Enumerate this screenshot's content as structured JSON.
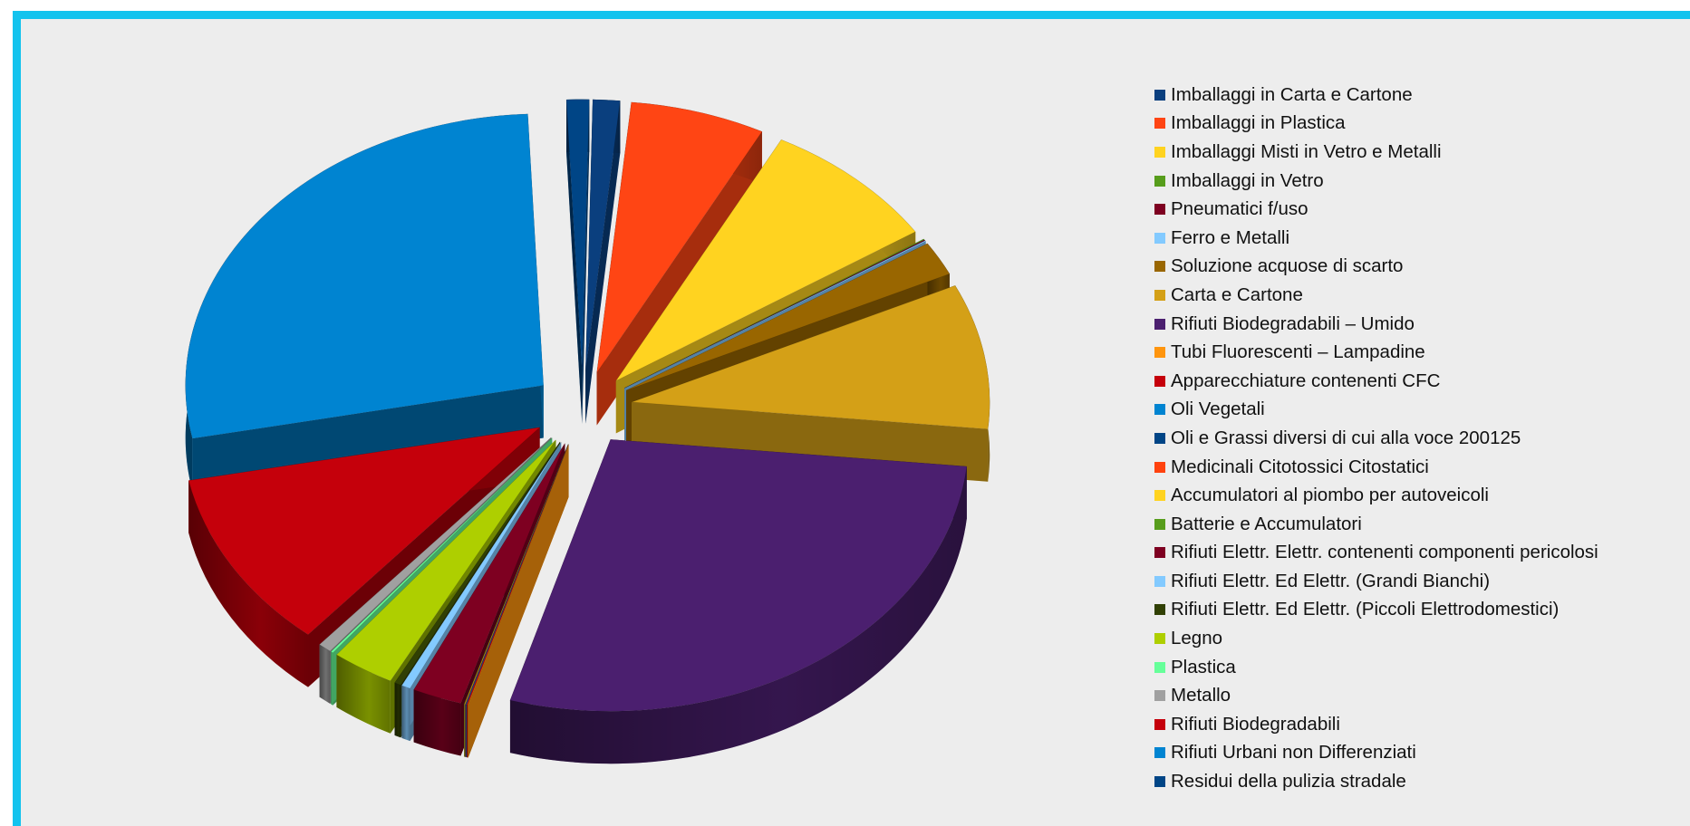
{
  "chart_data": {
    "type": "pie",
    "title": "",
    "legend_position": "right",
    "series": [
      {
        "name": "Imballaggi in Carta e Cartone",
        "value": 1.2,
        "color": "#0a3f7e"
      },
      {
        "name": "Imballaggi in Plastica",
        "value": 6.0,
        "color": "#ff4514"
      },
      {
        "name": "Imballaggi Misti in Vetro e Metalli",
        "value": 8.0,
        "color": "#ffd320"
      },
      {
        "name": "Imballaggi in Vetro",
        "value": 0.05,
        "color": "#579d1c"
      },
      {
        "name": "Pneumatici f/uso",
        "value": 0.05,
        "color": "#7e0021"
      },
      {
        "name": "Ferro e Metalli",
        "value": 0.05,
        "color": "#83caff"
      },
      {
        "name": "Soluzione acquose di scarto",
        "value": 2.0,
        "color": "#996600"
      },
      {
        "name": "Carta e Cartone",
        "value": 8.5,
        "color": "#d4a017"
      },
      {
        "name": "Rifiuti Biodegradabili – Umido",
        "value": 27.5,
        "color": "#4b1f6f"
      },
      {
        "name": "Tubi Fluorescenti – Lampadine",
        "value": 0.02,
        "color": "#ff950e"
      },
      {
        "name": "Apparecchiature contenenti CFC",
        "value": 0.05,
        "color": "#c5000b"
      },
      {
        "name": "Oli Vegetali",
        "value": 0.02,
        "color": "#0084d1"
      },
      {
        "name": "Oli e Grassi diversi di cui alla voce 200125",
        "value": 0.02,
        "color": "#004586"
      },
      {
        "name": "Medicinali Citotossici Citostatici",
        "value": 0.02,
        "color": "#ff420e"
      },
      {
        "name": "Accumulatori al piombo per autoveicoli",
        "value": 0.02,
        "color": "#ffd320"
      },
      {
        "name": "Batterie e Accumulatori",
        "value": 0.02,
        "color": "#579d1c"
      },
      {
        "name": "Rifiuti Elettr. Elettr. contenenti componenti pericolosi",
        "value": 2.2,
        "color": "#7e0021"
      },
      {
        "name": "Rifiuti Elettr. Ed Elettr. (Grandi Bianchi)",
        "value": 0.4,
        "color": "#83caff"
      },
      {
        "name": "Rifiuti Elettr. Ed Elettr. (Piccoli Elettrodomestici)",
        "value": 0.3,
        "color": "#314004"
      },
      {
        "name": "Legno",
        "value": 2.8,
        "color": "#aecf00"
      },
      {
        "name": "Plastica",
        "value": 0.1,
        "color": "#66ff99"
      },
      {
        "name": "Metallo",
        "value": 0.6,
        "color": "#a0a0a0"
      },
      {
        "name": "Rifiuti Biodegradabili",
        "value": 10.5,
        "color": "#c5000b"
      },
      {
        "name": "Rifiuti Urbani non Differenziati",
        "value": 27.0,
        "color": "#0084d1"
      },
      {
        "name": "Residui della pulizia stradale",
        "value": 1.0,
        "color": "#004586"
      }
    ]
  }
}
